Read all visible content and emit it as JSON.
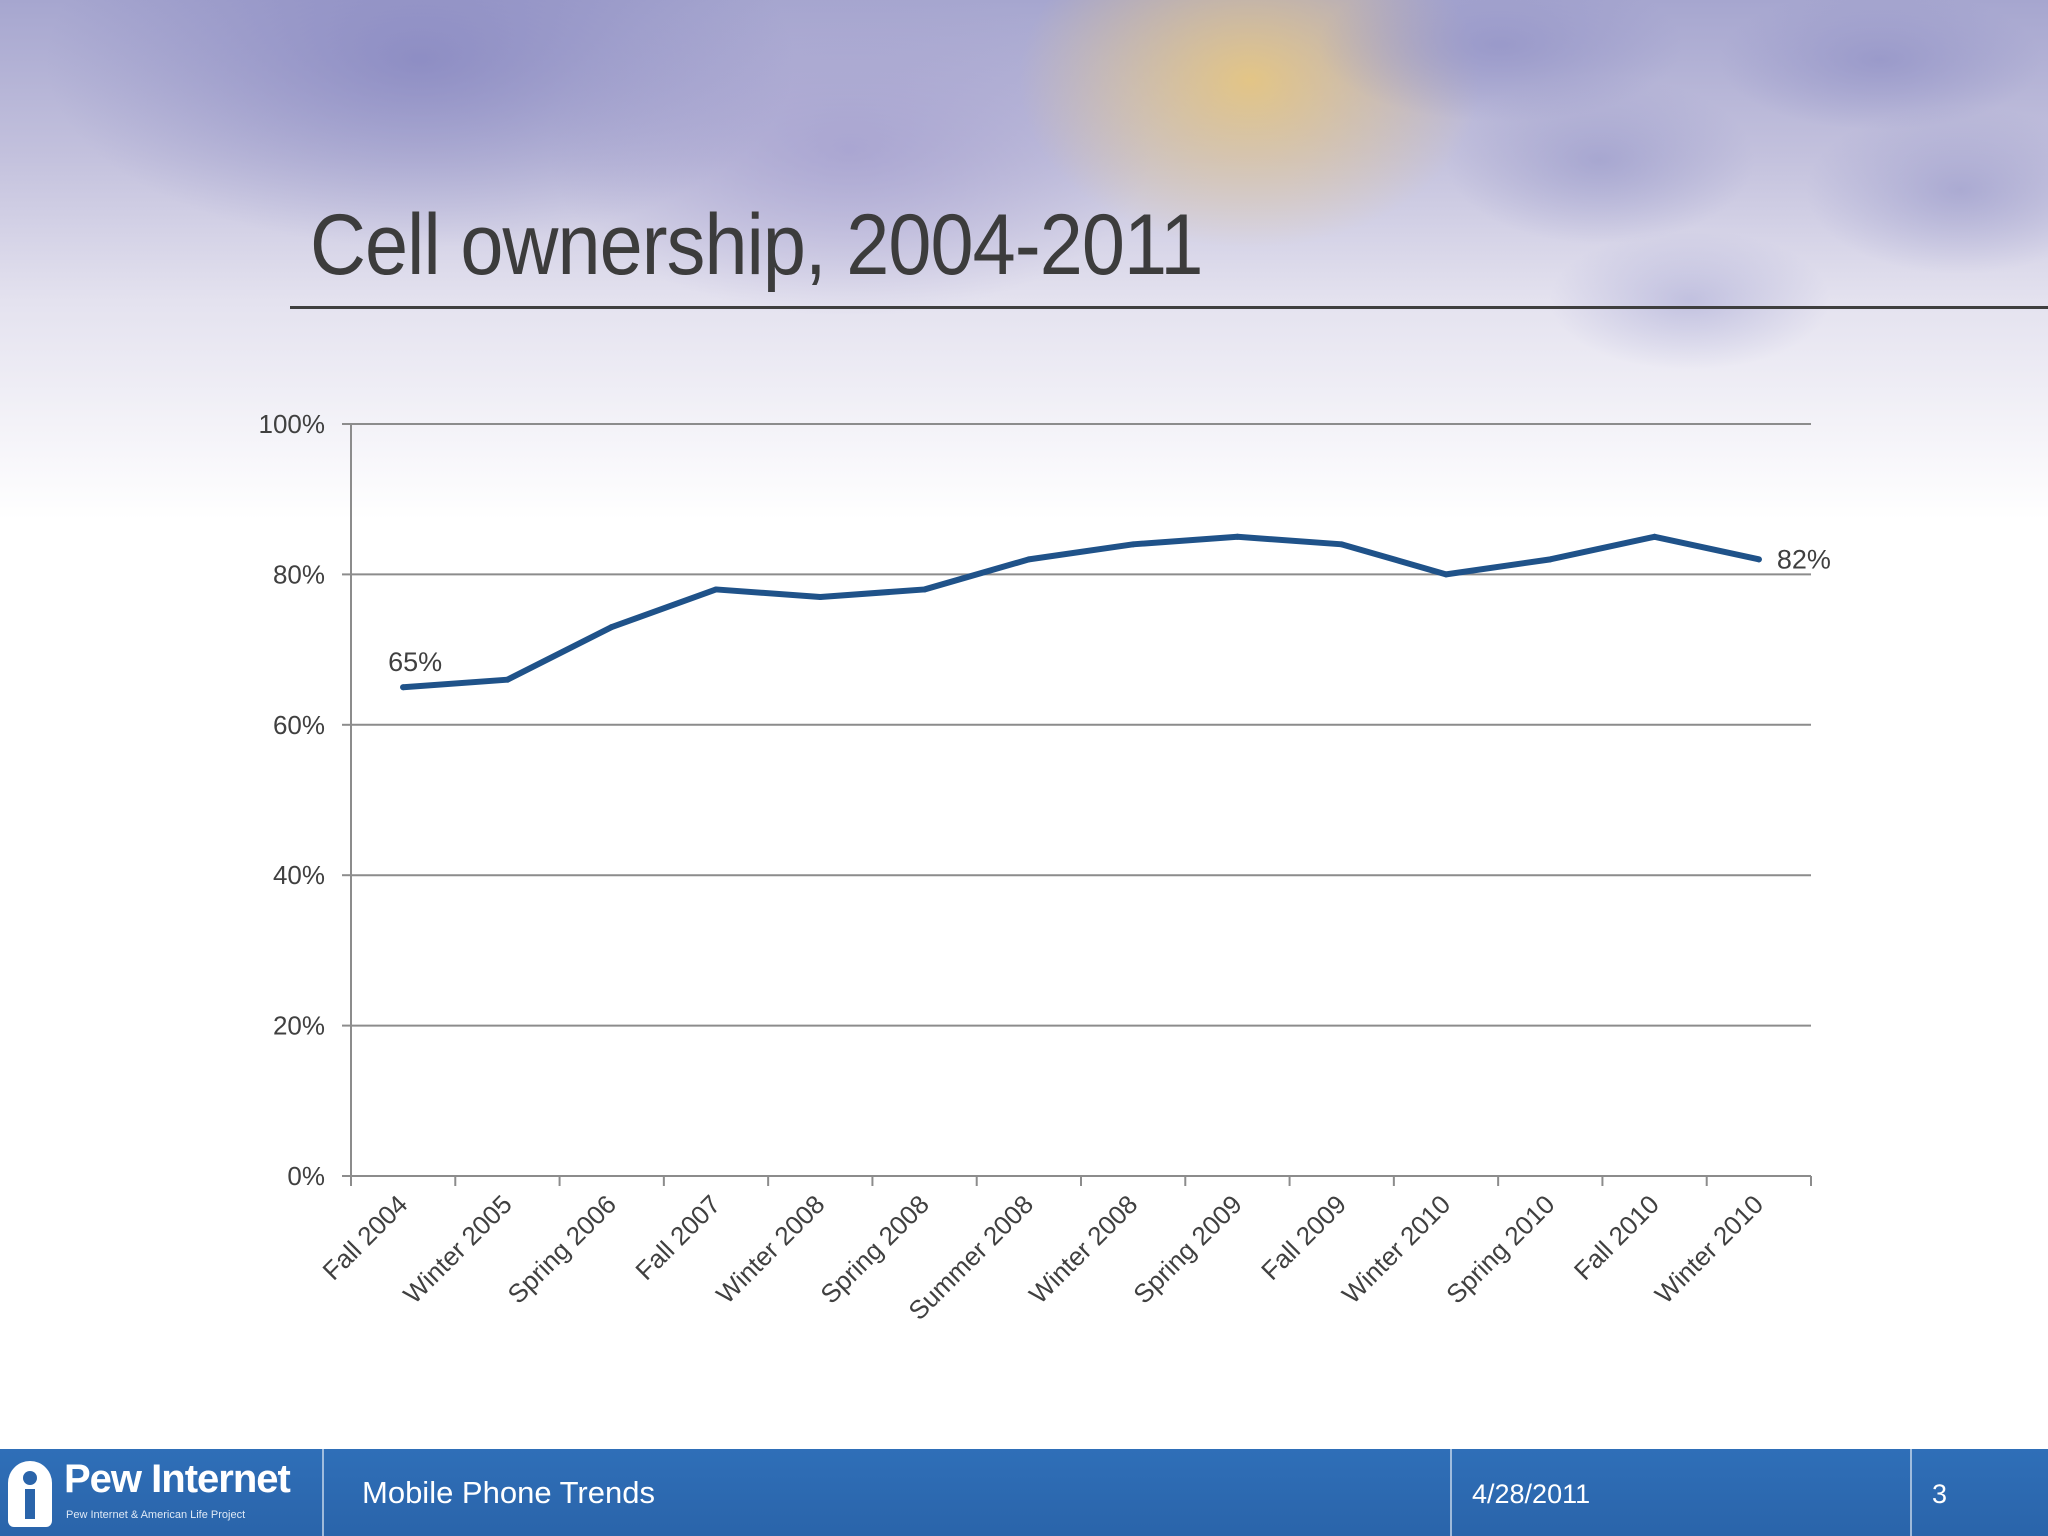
{
  "slide": {
    "title": "Cell ownership, 2004-2011"
  },
  "footer": {
    "logo_name": "Pew Internet",
    "logo_subtitle": "Pew Internet & American Life Project",
    "presentation_title": "Mobile Phone Trends",
    "date": "4/28/2011",
    "page_number": "3",
    "background_color": "#2a64aa"
  },
  "chart_data": {
    "type": "line",
    "title": "",
    "xlabel": "",
    "ylabel": "",
    "categories": [
      "Fall 2004",
      "Winter 2005",
      "Spring 2006",
      "Fall 2007",
      "Winter 2008",
      "Spring 2008",
      "Summer 2008",
      "Winter 2008",
      "Spring 2009",
      "Fall 2009",
      "Winter 2010",
      "Spring 2010",
      "Fall 2010",
      "Winter 2010"
    ],
    "series": [
      {
        "values": [
          65,
          66,
          73,
          78,
          77,
          78,
          82,
          84,
          85,
          84,
          80,
          82,
          85,
          82
        ],
        "color": "#1f5289"
      }
    ],
    "ylim": [
      0,
      100
    ],
    "y_ticks": [
      "0%",
      "20%",
      "40%",
      "60%",
      "80%",
      "100%"
    ],
    "y_tick_values": [
      0,
      20,
      40,
      60,
      80,
      100
    ],
    "data_labels": [
      {
        "index": 0,
        "text": "65%"
      },
      {
        "index": 13,
        "text": "82%"
      }
    ],
    "grid": true,
    "legend": "none"
  }
}
